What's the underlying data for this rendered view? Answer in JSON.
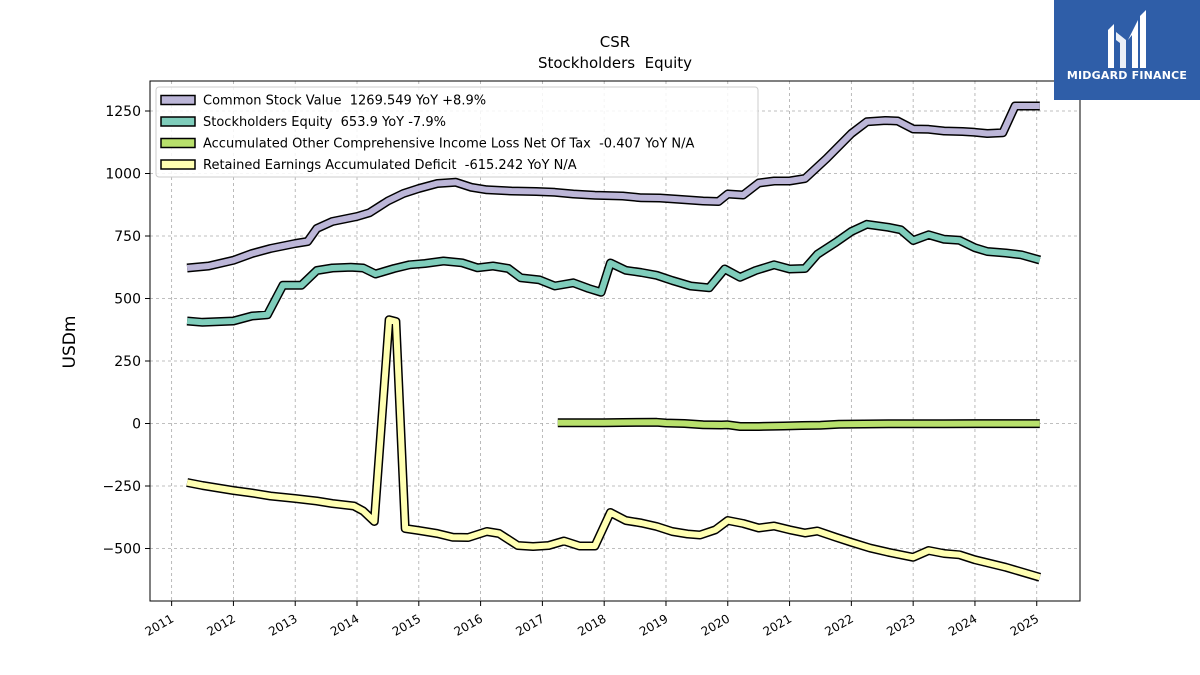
{
  "brand": {
    "name": "MIDGARD FINANCE",
    "logo_icon": "midgard-logo-icon",
    "bg_color": "#2f5ea8"
  },
  "chart_data": {
    "type": "line",
    "title": "CSR",
    "subtitle": "Stockholders  Equity",
    "ylabel": "USDm",
    "xlabel": "",
    "xlim": [
      2010.65,
      2025.7
    ],
    "ylim": [
      -710,
      1370
    ],
    "yticks": [
      -500,
      -250,
      0,
      250,
      500,
      750,
      1000,
      1250
    ],
    "ytick_labels": [
      "−500",
      "−250",
      "0",
      "250",
      "500",
      "750",
      "1000",
      "1250"
    ],
    "xticks": [
      2011,
      2012,
      2013,
      2014,
      2015,
      2016,
      2017,
      2018,
      2019,
      2020,
      2021,
      2022,
      2023,
      2024,
      2025
    ],
    "xtick_labels": [
      "2011",
      "2012",
      "2013",
      "2014",
      "2015",
      "2016",
      "2017",
      "2018",
      "2019",
      "2020",
      "2021",
      "2022",
      "2023",
      "2024",
      "2025"
    ],
    "grid": true,
    "legend_position": "top-left",
    "series": [
      {
        "name": "Common Stock Value  1269.549 YoY +8.9%",
        "color": "#bcb6d8",
        "points": [
          [
            2011.25,
            622
          ],
          [
            2011.6,
            630
          ],
          [
            2012.0,
            653
          ],
          [
            2012.3,
            680
          ],
          [
            2012.6,
            700
          ],
          [
            2013.0,
            720
          ],
          [
            2013.2,
            728
          ],
          [
            2013.35,
            780
          ],
          [
            2013.6,
            808
          ],
          [
            2014.0,
            828
          ],
          [
            2014.2,
            843
          ],
          [
            2014.5,
            890
          ],
          [
            2014.75,
            920
          ],
          [
            2015.0,
            940
          ],
          [
            2015.3,
            960
          ],
          [
            2015.6,
            965
          ],
          [
            2015.85,
            945
          ],
          [
            2016.1,
            935
          ],
          [
            2016.5,
            930
          ],
          [
            2016.9,
            928
          ],
          [
            2017.2,
            925
          ],
          [
            2017.5,
            918
          ],
          [
            2017.85,
            913
          ],
          [
            2018.3,
            910
          ],
          [
            2018.6,
            903
          ],
          [
            2018.9,
            902
          ],
          [
            2019.2,
            897
          ],
          [
            2019.6,
            890
          ],
          [
            2019.85,
            888
          ],
          [
            2020.0,
            918
          ],
          [
            2020.25,
            914
          ],
          [
            2020.5,
            962
          ],
          [
            2020.75,
            970
          ],
          [
            2021.0,
            970
          ],
          [
            2021.25,
            980
          ],
          [
            2021.6,
            1060
          ],
          [
            2022.0,
            1160
          ],
          [
            2022.25,
            1207
          ],
          [
            2022.55,
            1212
          ],
          [
            2022.75,
            1210
          ],
          [
            2023.0,
            1178
          ],
          [
            2023.25,
            1177
          ],
          [
            2023.5,
            1170
          ],
          [
            2023.8,
            1168
          ],
          [
            2024.0,
            1165
          ],
          [
            2024.2,
            1160
          ],
          [
            2024.45,
            1163
          ],
          [
            2024.65,
            1270
          ],
          [
            2025.05,
            1270
          ]
        ]
      },
      {
        "name": "Stockholders Equity  653.9 YoY -7.9%",
        "color": "#7fcdbb",
        "points": [
          [
            2011.25,
            410
          ],
          [
            2011.5,
            405
          ],
          [
            2012.0,
            410
          ],
          [
            2012.3,
            430
          ],
          [
            2012.55,
            435
          ],
          [
            2012.8,
            553
          ],
          [
            2013.1,
            553
          ],
          [
            2013.35,
            612
          ],
          [
            2013.6,
            622
          ],
          [
            2013.9,
            625
          ],
          [
            2014.1,
            622
          ],
          [
            2014.3,
            598
          ],
          [
            2014.6,
            620
          ],
          [
            2014.85,
            635
          ],
          [
            2015.1,
            640
          ],
          [
            2015.4,
            650
          ],
          [
            2015.7,
            643
          ],
          [
            2015.95,
            623
          ],
          [
            2016.2,
            630
          ],
          [
            2016.45,
            620
          ],
          [
            2016.65,
            583
          ],
          [
            2016.95,
            575
          ],
          [
            2017.2,
            550
          ],
          [
            2017.5,
            563
          ],
          [
            2017.75,
            540
          ],
          [
            2017.95,
            525
          ],
          [
            2018.1,
            642
          ],
          [
            2018.35,
            613
          ],
          [
            2018.6,
            604
          ],
          [
            2018.85,
            593
          ],
          [
            2019.1,
            572
          ],
          [
            2019.4,
            550
          ],
          [
            2019.7,
            543
          ],
          [
            2019.95,
            618
          ],
          [
            2020.2,
            585
          ],
          [
            2020.45,
            612
          ],
          [
            2020.75,
            635
          ],
          [
            2021.0,
            618
          ],
          [
            2021.25,
            620
          ],
          [
            2021.45,
            677
          ],
          [
            2021.75,
            725
          ],
          [
            2022.0,
            768
          ],
          [
            2022.25,
            797
          ],
          [
            2022.6,
            785
          ],
          [
            2022.8,
            775
          ],
          [
            2023.0,
            732
          ],
          [
            2023.25,
            755
          ],
          [
            2023.5,
            737
          ],
          [
            2023.75,
            733
          ],
          [
            2024.0,
            703
          ],
          [
            2024.2,
            688
          ],
          [
            2024.5,
            682
          ],
          [
            2024.75,
            675
          ],
          [
            2025.05,
            654
          ]
        ]
      },
      {
        "name": "Accumulated Other Comprehensive Income Loss Net Of Tax  -0.407 YoY N/A",
        "color": "#b8e06c",
        "points": [
          [
            2017.25,
            3
          ],
          [
            2017.6,
            3
          ],
          [
            2018.0,
            3
          ],
          [
            2018.3,
            4
          ],
          [
            2018.85,
            5
          ],
          [
            2019.0,
            2
          ],
          [
            2019.3,
            0
          ],
          [
            2019.6,
            -5
          ],
          [
            2019.9,
            -6
          ],
          [
            2020.0,
            -5
          ],
          [
            2020.2,
            -12
          ],
          [
            2020.5,
            -12
          ],
          [
            2020.9,
            -10
          ],
          [
            2021.2,
            -8
          ],
          [
            2021.5,
            -7
          ],
          [
            2021.8,
            -3
          ],
          [
            2022.2,
            -2
          ],
          [
            2022.6,
            -1
          ],
          [
            2023.0,
            -1
          ],
          [
            2023.5,
            -1
          ],
          [
            2024.0,
            -0.5
          ],
          [
            2024.5,
            -0.4
          ],
          [
            2025.05,
            -0.4
          ]
        ]
      },
      {
        "name": "Retained Earnings Accumulated Deficit  -615.242 YoY N/A",
        "color": "#ffffb2",
        "points": [
          [
            2011.25,
            -236
          ],
          [
            2011.5,
            -248
          ],
          [
            2012.0,
            -268
          ],
          [
            2012.3,
            -278
          ],
          [
            2012.6,
            -290
          ],
          [
            2013.0,
            -300
          ],
          [
            2013.35,
            -310
          ],
          [
            2013.6,
            -320
          ],
          [
            2013.95,
            -330
          ],
          [
            2014.1,
            -350
          ],
          [
            2014.28,
            -392
          ],
          [
            2014.52,
            415
          ],
          [
            2014.63,
            408
          ],
          [
            2014.78,
            -420
          ],
          [
            2015.0,
            -428
          ],
          [
            2015.3,
            -440
          ],
          [
            2015.55,
            -455
          ],
          [
            2015.8,
            -456
          ],
          [
            2016.1,
            -432
          ],
          [
            2016.3,
            -440
          ],
          [
            2016.6,
            -488
          ],
          [
            2016.85,
            -492
          ],
          [
            2017.1,
            -488
          ],
          [
            2017.35,
            -470
          ],
          [
            2017.6,
            -490
          ],
          [
            2017.85,
            -490
          ],
          [
            2018.1,
            -356
          ],
          [
            2018.35,
            -388
          ],
          [
            2018.6,
            -398
          ],
          [
            2018.85,
            -412
          ],
          [
            2019.1,
            -432
          ],
          [
            2019.35,
            -442
          ],
          [
            2019.55,
            -446
          ],
          [
            2019.8,
            -425
          ],
          [
            2020.0,
            -388
          ],
          [
            2020.25,
            -400
          ],
          [
            2020.5,
            -418
          ],
          [
            2020.75,
            -410
          ],
          [
            2021.0,
            -425
          ],
          [
            2021.25,
            -438
          ],
          [
            2021.45,
            -430
          ],
          [
            2021.75,
            -455
          ],
          [
            2022.0,
            -475
          ],
          [
            2022.3,
            -498
          ],
          [
            2022.6,
            -515
          ],
          [
            2023.0,
            -535
          ],
          [
            2023.25,
            -508
          ],
          [
            2023.5,
            -520
          ],
          [
            2023.75,
            -525
          ],
          [
            2024.0,
            -545
          ],
          [
            2024.5,
            -575
          ],
          [
            2025.05,
            -615
          ]
        ]
      }
    ]
  }
}
